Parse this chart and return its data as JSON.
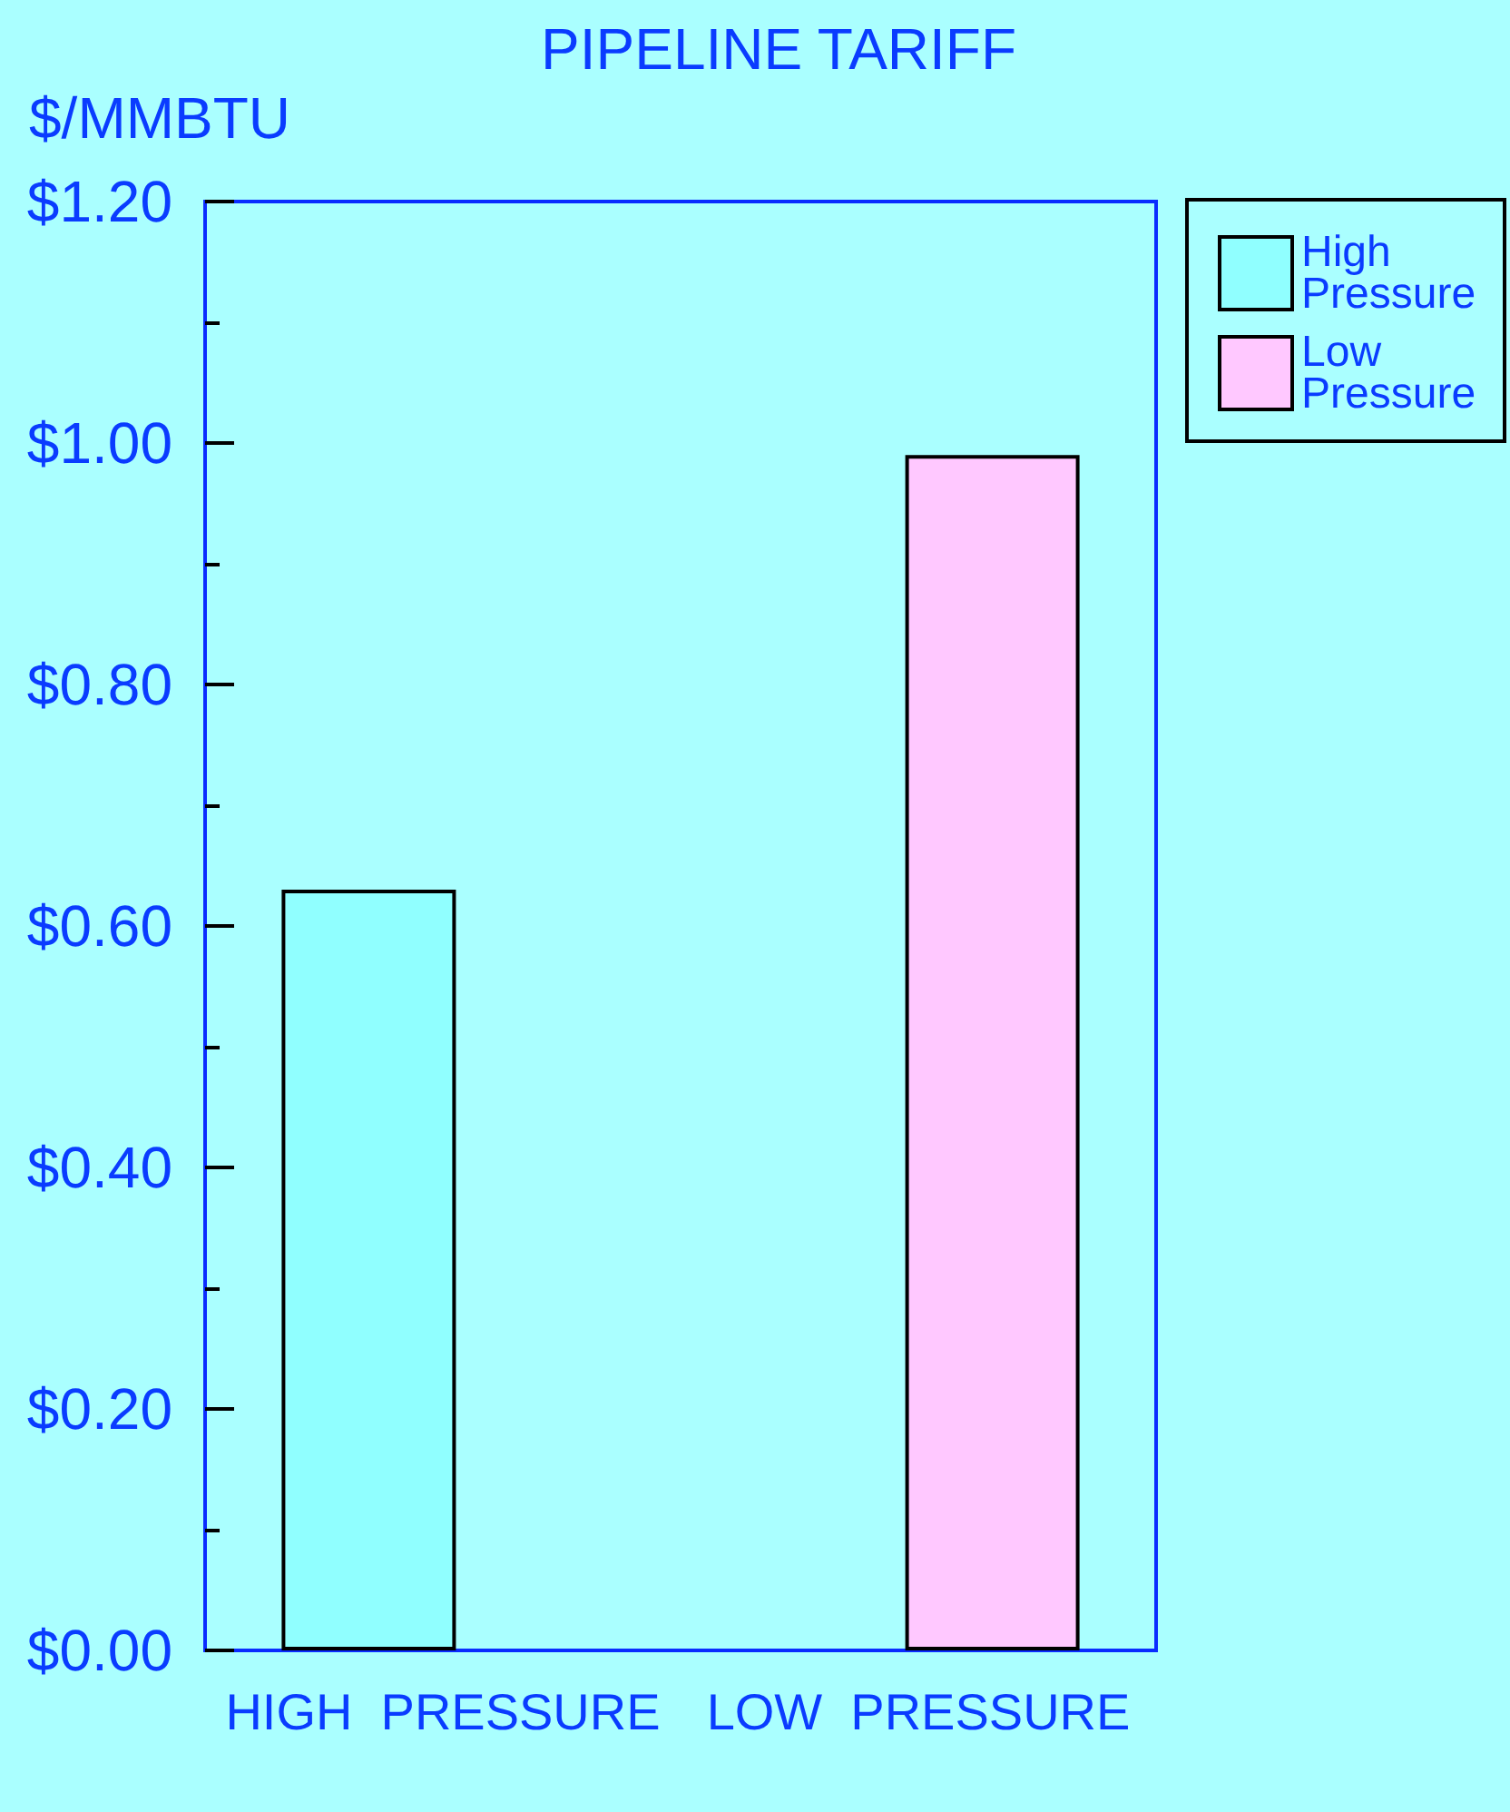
{
  "chart_data": {
    "type": "bar",
    "title": "PIPELINE TARIFF",
    "ylabel": "$/MMBTU",
    "categories": [
      "HIGH  PRESSURE",
      "LOW  PRESSURE"
    ],
    "series": [
      {
        "name": "High Pressure",
        "color": "#90ffff",
        "values": [
          0.63,
          null
        ]
      },
      {
        "name": "Low Pressure",
        "color": "#ffc8ff",
        "values": [
          null,
          0.99
        ]
      }
    ],
    "ylim": [
      0,
      1.2
    ],
    "yticks": [
      {
        "value": 0,
        "label": "$0.00"
      },
      {
        "value": 0.1,
        "label": null
      },
      {
        "value": 0.2,
        "label": "$0.20"
      },
      {
        "value": 0.3,
        "label": null
      },
      {
        "value": 0.4,
        "label": "$0.40"
      },
      {
        "value": 0.5,
        "label": null
      },
      {
        "value": 0.6,
        "label": "$0.60"
      },
      {
        "value": 0.7,
        "label": null
      },
      {
        "value": 0.8,
        "label": "$0.80"
      },
      {
        "value": 0.9,
        "label": null
      },
      {
        "value": 1.0,
        "label": "$1.00"
      },
      {
        "value": 1.1,
        "label": null
      },
      {
        "value": 1.2,
        "label": "$1.20"
      }
    ],
    "legend": "top right",
    "grid": false
  }
}
